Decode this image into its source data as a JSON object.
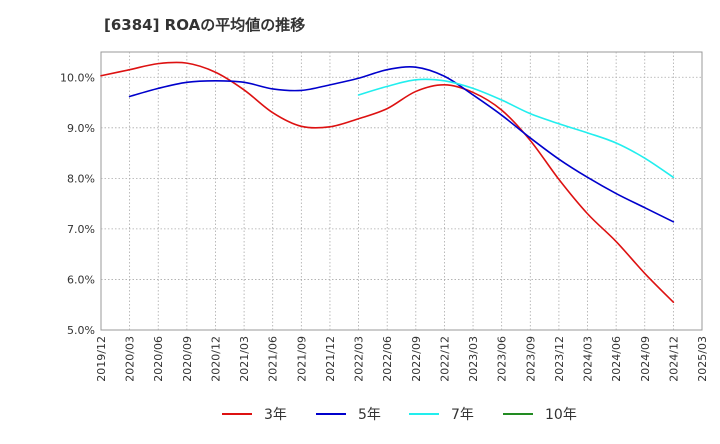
{
  "chart_data": {
    "type": "line",
    "title": "[6384]  ROAの平均値の推移",
    "xlabel": "",
    "ylabel": "",
    "x": [
      "2019/12",
      "2020/03",
      "2020/06",
      "2020/09",
      "2020/12",
      "2021/03",
      "2021/06",
      "2021/09",
      "2021/12",
      "2022/03",
      "2022/06",
      "2022/09",
      "2022/12",
      "2023/03",
      "2023/06",
      "2023/09",
      "2023/12",
      "2024/03",
      "2024/06",
      "2024/09",
      "2024/12",
      "2025/03"
    ],
    "ylim": [
      5.0,
      10.5
    ],
    "yticks": [
      5.0,
      6.0,
      7.0,
      8.0,
      9.0,
      10.0
    ],
    "ytick_labels": [
      "5.0%",
      "6.0%",
      "7.0%",
      "8.0%",
      "9.0%",
      "10.0%"
    ],
    "grid": true,
    "legend_position": "bottom",
    "series": [
      {
        "name": "3年",
        "color": "#dd1111",
        "values": [
          10.03,
          10.15,
          10.27,
          10.28,
          10.1,
          9.75,
          9.3,
          9.03,
          9.02,
          9.18,
          9.38,
          9.72,
          9.85,
          9.7,
          9.35,
          8.75,
          7.98,
          7.3,
          6.75,
          6.12,
          5.55,
          null
        ]
      },
      {
        "name": "5年",
        "color": "#0000cc",
        "values": [
          null,
          9.62,
          9.78,
          9.9,
          9.93,
          9.9,
          9.77,
          9.74,
          9.85,
          9.98,
          10.15,
          10.2,
          10.02,
          9.65,
          9.25,
          8.8,
          8.38,
          8.02,
          7.7,
          7.42,
          7.14,
          null
        ]
      },
      {
        "name": "7年",
        "color": "#22eeee",
        "values": [
          null,
          null,
          null,
          null,
          null,
          null,
          null,
          null,
          null,
          9.65,
          9.82,
          9.95,
          9.93,
          9.78,
          9.55,
          9.28,
          9.08,
          8.9,
          8.7,
          8.4,
          8.02,
          null
        ]
      },
      {
        "name": "10年",
        "color": "#228b22",
        "values": [
          null,
          null,
          null,
          null,
          null,
          null,
          null,
          null,
          null,
          null,
          null,
          null,
          null,
          null,
          null,
          null,
          null,
          null,
          null,
          null,
          null,
          null
        ]
      }
    ]
  }
}
